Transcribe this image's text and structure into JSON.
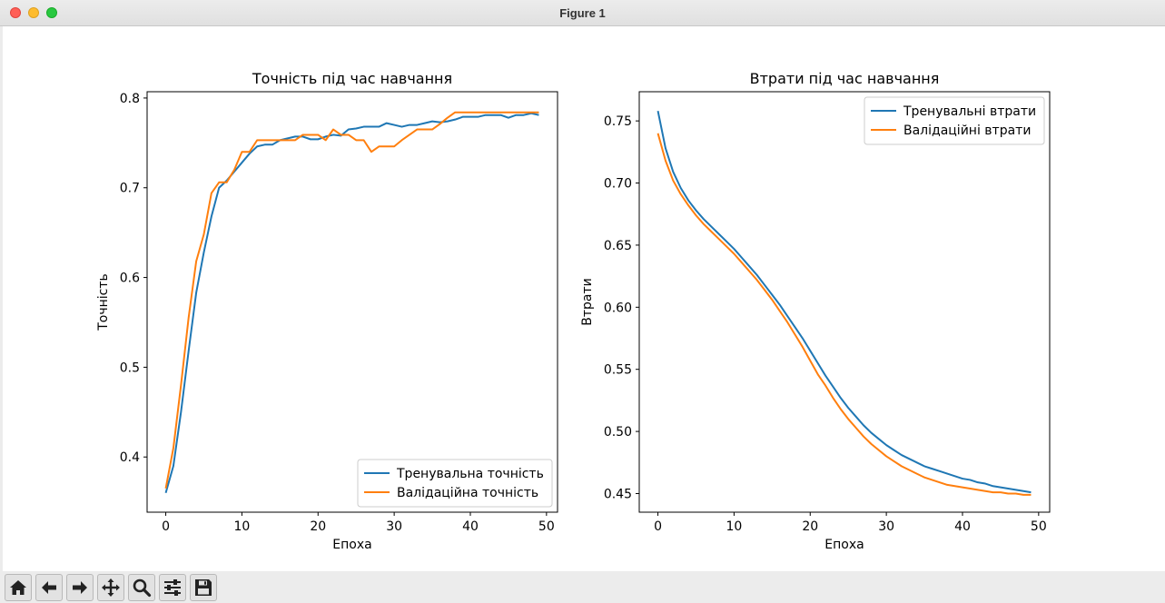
{
  "window": {
    "title": "Figure 1"
  },
  "toolbar": {
    "buttons": [
      {
        "name": "home-button",
        "icon": "home-icon"
      },
      {
        "name": "back-button",
        "icon": "arrow-left-icon"
      },
      {
        "name": "forward-button",
        "icon": "arrow-right-icon"
      },
      {
        "name": "pan-button",
        "icon": "move-icon"
      },
      {
        "name": "zoom-button",
        "icon": "magnifier-icon"
      },
      {
        "name": "configure-subplots-button",
        "icon": "sliders-icon"
      },
      {
        "name": "save-button",
        "icon": "floppy-disk-icon"
      }
    ]
  },
  "chart_data": [
    {
      "type": "line",
      "title": "Точність під час навчання",
      "xlabel": "Епоха",
      "ylabel": "Точність",
      "xlim": [
        -2.45,
        51.45
      ],
      "ylim": [
        0.3385,
        0.807
      ],
      "xticks": [
        0,
        10,
        20,
        30,
        40,
        50
      ],
      "yticks": [
        0.4,
        0.5,
        0.6,
        0.7,
        0.8
      ],
      "ytick_labels": [
        "0.4",
        "0.5",
        "0.6",
        "0.7",
        "0.8"
      ],
      "legend_loc": "lower-right",
      "grid": false,
      "x": [
        0,
        1,
        2,
        3,
        4,
        5,
        6,
        7,
        8,
        9,
        10,
        11,
        12,
        13,
        14,
        15,
        16,
        17,
        18,
        19,
        20,
        21,
        22,
        23,
        24,
        25,
        26,
        27,
        28,
        29,
        30,
        31,
        32,
        33,
        34,
        35,
        36,
        37,
        38,
        39,
        40,
        41,
        42,
        43,
        44,
        45,
        46,
        47,
        48,
        49
      ],
      "series": [
        {
          "name": "Тренувальна точність",
          "color": "#1f77b4",
          "values": [
            0.36,
            0.39,
            0.45,
            0.518,
            0.583,
            0.628,
            0.668,
            0.7,
            0.708,
            0.718,
            0.728,
            0.738,
            0.746,
            0.748,
            0.748,
            0.753,
            0.755,
            0.757,
            0.757,
            0.754,
            0.754,
            0.757,
            0.759,
            0.758,
            0.765,
            0.766,
            0.768,
            0.768,
            0.768,
            0.772,
            0.77,
            0.768,
            0.77,
            0.77,
            0.772,
            0.774,
            0.773,
            0.774,
            0.776,
            0.779,
            0.779,
            0.779,
            0.781,
            0.781,
            0.781,
            0.778,
            0.781,
            0.781,
            0.783,
            0.781
          ]
        },
        {
          "name": "Валідаційна точність",
          "color": "#ff7f0e",
          "values": [
            0.365,
            0.41,
            0.48,
            0.555,
            0.618,
            0.648,
            0.694,
            0.706,
            0.706,
            0.72,
            0.74,
            0.74,
            0.753,
            0.753,
            0.753,
            0.753,
            0.753,
            0.753,
            0.759,
            0.759,
            0.759,
            0.753,
            0.765,
            0.759,
            0.759,
            0.753,
            0.753,
            0.74,
            0.746,
            0.746,
            0.746,
            0.753,
            0.759,
            0.765,
            0.765,
            0.765,
            0.771,
            0.778,
            0.784,
            0.784,
            0.784,
            0.784,
            0.784,
            0.784,
            0.784,
            0.784,
            0.784,
            0.784,
            0.784,
            0.784
          ]
        }
      ]
    },
    {
      "type": "line",
      "title": "Втрати під час навчання",
      "xlabel": "Епоха",
      "ylabel": "Втрати",
      "xlim": [
        -2.45,
        51.45
      ],
      "ylim": [
        0.435,
        0.7735
      ],
      "xticks": [
        0,
        10,
        20,
        30,
        40,
        50
      ],
      "yticks": [
        0.45,
        0.5,
        0.55,
        0.6,
        0.65,
        0.7,
        0.75
      ],
      "ytick_labels": [
        "0.45",
        "0.50",
        "0.55",
        "0.60",
        "0.65",
        "0.70",
        "0.75"
      ],
      "legend_loc": "upper-right",
      "grid": false,
      "x": [
        0,
        1,
        2,
        3,
        4,
        5,
        6,
        7,
        8,
        9,
        10,
        11,
        12,
        13,
        14,
        15,
        16,
        17,
        18,
        19,
        20,
        21,
        22,
        23,
        24,
        25,
        26,
        27,
        28,
        29,
        30,
        31,
        32,
        33,
        34,
        35,
        36,
        37,
        38,
        39,
        40,
        41,
        42,
        43,
        44,
        45,
        46,
        47,
        48,
        49
      ],
      "series": [
        {
          "name": "Тренувальні втрати",
          "color": "#1f77b4",
          "values": [
            0.758,
            0.728,
            0.709,
            0.696,
            0.686,
            0.678,
            0.671,
            0.665,
            0.659,
            0.653,
            0.647,
            0.64,
            0.633,
            0.626,
            0.618,
            0.61,
            0.602,
            0.593,
            0.584,
            0.575,
            0.565,
            0.555,
            0.545,
            0.536,
            0.527,
            0.519,
            0.512,
            0.505,
            0.499,
            0.494,
            0.489,
            0.485,
            0.481,
            0.478,
            0.475,
            0.472,
            0.47,
            0.468,
            0.466,
            0.464,
            0.462,
            0.461,
            0.459,
            0.458,
            0.456,
            0.455,
            0.454,
            0.453,
            0.452,
            0.451
          ]
        },
        {
          "name": "Валідаційні втрати",
          "color": "#ff7f0e",
          "values": [
            0.74,
            0.718,
            0.702,
            0.691,
            0.682,
            0.674,
            0.667,
            0.661,
            0.655,
            0.649,
            0.643,
            0.636,
            0.629,
            0.622,
            0.614,
            0.606,
            0.597,
            0.588,
            0.578,
            0.568,
            0.557,
            0.546,
            0.537,
            0.527,
            0.518,
            0.51,
            0.503,
            0.496,
            0.49,
            0.485,
            0.48,
            0.476,
            0.472,
            0.469,
            0.466,
            0.463,
            0.461,
            0.459,
            0.457,
            0.456,
            0.455,
            0.454,
            0.453,
            0.452,
            0.451,
            0.451,
            0.45,
            0.45,
            0.449,
            0.449
          ]
        }
      ]
    }
  ]
}
